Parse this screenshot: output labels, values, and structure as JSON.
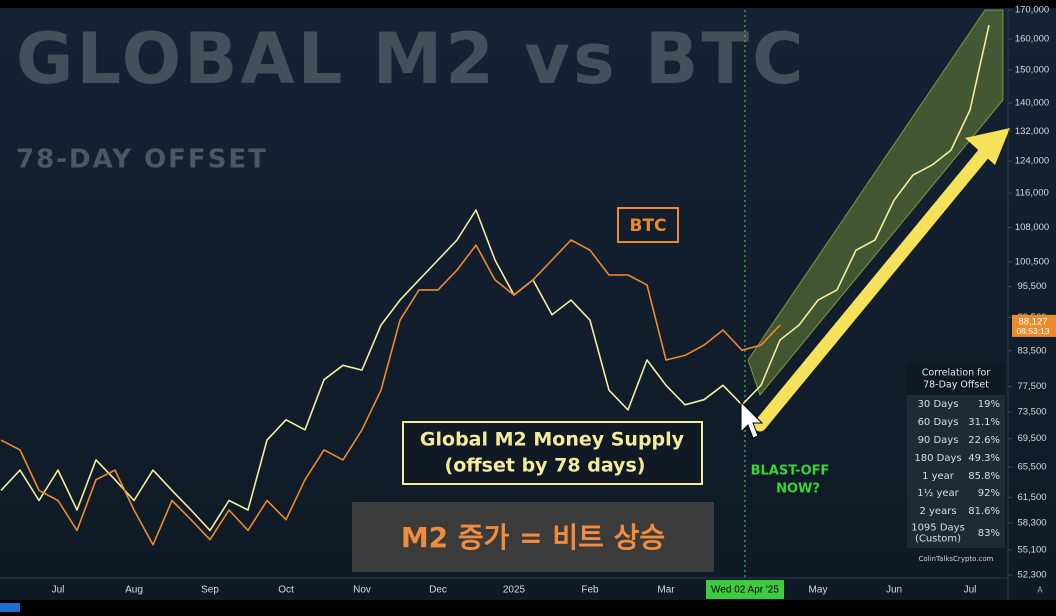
{
  "chart_data": {
    "type": "line",
    "title": "GLOBAL M2 vs BTC",
    "subtitle": "78-DAY OFFSET",
    "log_scale": true,
    "grid": false,
    "categories": [
      null,
      null,
      null,
      "Jul",
      null,
      null,
      null,
      "Aug",
      null,
      null,
      null,
      "Sep",
      null,
      null,
      null,
      "Oct",
      null,
      null,
      null,
      "Nov",
      null,
      null,
      null,
      "Dec",
      null,
      null,
      null,
      "2025",
      null,
      null,
      null,
      "Feb",
      null,
      null,
      null,
      "Mar",
      null,
      null,
      null,
      "Wed 02 Apr '25",
      null,
      null,
      null,
      "May",
      null,
      null,
      null,
      "Jun",
      null,
      null,
      null,
      "Jul",
      null
    ],
    "series": [
      {
        "name": "BTC",
        "color": "#ec8a2c",
        "values": [
          69300,
          67900,
          62400,
          61100,
          57400,
          63800,
          65100,
          59900,
          55700,
          61100,
          58700,
          56300,
          59900,
          57400,
          61100,
          58700,
          63800,
          67900,
          66500,
          70800,
          76900,
          89000,
          94800,
          94800,
          98800,
          104100,
          96800,
          93800,
          96800,
          100900,
          105200,
          103000,
          97800,
          97800,
          95800,
          81900,
          82700,
          84500,
          87200,
          83600,
          84500,
          88100,
          null,
          null,
          null,
          null,
          null,
          null,
          null,
          null,
          null,
          null,
          null
        ]
      },
      {
        "name": "Global M2 Money Supply",
        "color": "#f4ec9c",
        "values": [
          62400,
          65100,
          61100,
          65100,
          59900,
          66500,
          63800,
          61100,
          65100,
          62400,
          59900,
          57400,
          61100,
          59900,
          69300,
          72300,
          70800,
          78600,
          81000,
          80200,
          88100,
          92800,
          96800,
          100900,
          105200,
          112000,
          100900,
          93800,
          96800,
          90000,
          92800,
          89000,
          76900,
          73800,
          81900,
          77700,
          74600,
          75400,
          77700,
          74600,
          77700,
          85400,
          88100,
          92800,
          94800,
          103000,
          105200,
          114300,
          120500,
          123000,
          126900,
          138000,
          164700
        ]
      }
    ],
    "ylim": [
      52300,
      170000
    ],
    "yticks": [
      {
        "value": 52300,
        "label": "52,300"
      },
      {
        "value": 55100,
        "label": "55,100"
      },
      {
        "value": 58300,
        "label": "58,300"
      },
      {
        "value": 61500,
        "label": "61,500"
      },
      {
        "value": 65500,
        "label": "65,500"
      },
      {
        "value": 69500,
        "label": "69,500"
      },
      {
        "value": 73500,
        "label": "73,500"
      },
      {
        "value": 77500,
        "label": "77,500"
      },
      {
        "value": 83500,
        "label": "83,500"
      },
      {
        "value": 89500,
        "label": "89,500"
      },
      {
        "value": 95500,
        "label": "95,500"
      },
      {
        "value": 100500,
        "label": "100,500"
      },
      {
        "value": 108000,
        "label": "108,000"
      },
      {
        "value": 116000,
        "label": "116,000"
      },
      {
        "value": 124000,
        "label": "124,000"
      },
      {
        "value": 132000,
        "label": "132,000"
      },
      {
        "value": 140000,
        "label": "140,000"
      },
      {
        "value": 150000,
        "label": "150,000"
      },
      {
        "value": 160000,
        "label": "160,000"
      },
      {
        "value": 170000,
        "label": "170,000"
      }
    ],
    "last_price": {
      "value": 88127,
      "label": "88,127",
      "countdown": "08:53:13"
    },
    "btc_label": "BTC",
    "m2_label": [
      "Global M2 Money Supply",
      "(offset by 78 days)"
    ],
    "blast_off": [
      "BLAST-OFF",
      "NOW?"
    ],
    "caption": "M2 증가 = 비트 상승",
    "correlation_table": {
      "title": [
        "Correlation for",
        "78-Day Offset"
      ],
      "rows": [
        [
          "30 Days",
          "19%"
        ],
        [
          "60 Days",
          "31.1%"
        ],
        [
          "90 Days",
          "22.6%"
        ],
        [
          "180 Days",
          "49.3%"
        ],
        [
          "1 year",
          "85.8%"
        ],
        [
          "1½ year",
          "92%"
        ],
        [
          "2 years",
          "81.6%"
        ],
        [
          "1095 Days\n(Custom)",
          "83%"
        ]
      ]
    },
    "source": "ColinTalksCrypto.com",
    "corner_mark": "A"
  }
}
